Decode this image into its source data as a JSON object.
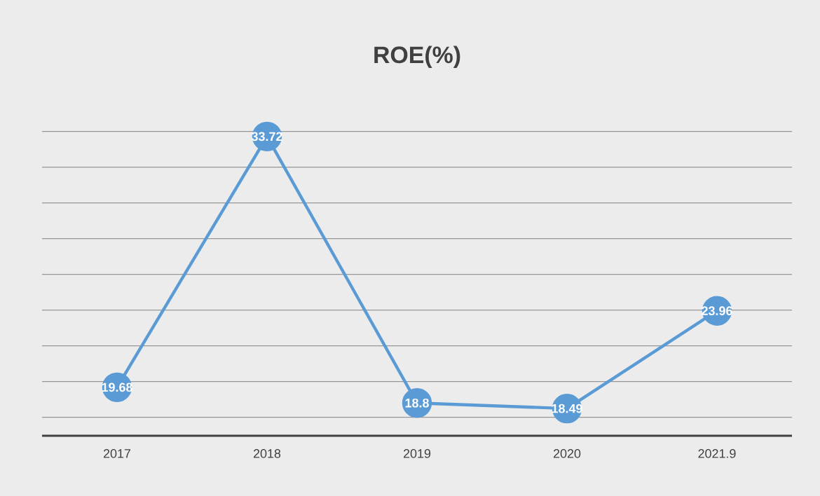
{
  "chart_data": {
    "type": "line",
    "title": "ROE(%)",
    "categories": [
      "2017",
      "2018",
      "2019",
      "2020",
      "2021.9"
    ],
    "series": [
      {
        "color": "#5b9bd5",
        "values": [
          19.68,
          33.72,
          18.8,
          18.49,
          23.96
        ]
      }
    ],
    "grid": "y",
    "tick_labels": "x",
    "marker": "circle",
    "line_style": "solid",
    "data_labels": true
  }
}
